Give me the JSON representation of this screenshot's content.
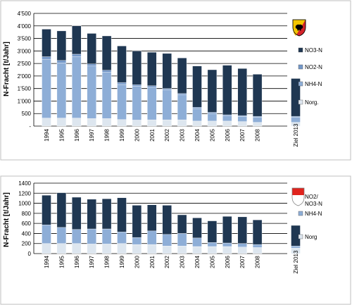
{
  "colors": {
    "NO3": "#1f3752",
    "NO2": "#7397c8",
    "NH4": "#8eaed7",
    "Norg": "#dde6ef",
    "grid": "#000000",
    "frame": "#bfbfbf"
  },
  "icons": [
    "bern-coat-of-arms-icon",
    "solothurn-coat-of-arms-icon"
  ],
  "chart_data": [
    {
      "type": "bar",
      "stacked": true,
      "ylabel": "N-Fracht [t/Jahr]",
      "ylim": [
        0,
        4500
      ],
      "yticks": [
        0,
        500,
        1000,
        1500,
        2000,
        2500,
        3000,
        3500,
        4000,
        4500
      ],
      "ytick_labels": [
        "-",
        "500",
        "1'000",
        "1'500",
        "2'000",
        "2'500",
        "3'000",
        "3'500",
        "4'000",
        "4'500"
      ],
      "grid": true,
      "legend_position": "right",
      "categories": [
        "1994",
        "1995",
        "1996",
        "1997",
        "1998",
        "1999",
        "2000",
        "2001",
        "2002",
        "2003",
        "2004",
        "2005",
        "2006",
        "2007",
        "2008",
        "Ziel 2013"
      ],
      "series": [
        {
          "name": "Norg.",
          "color_key": "Norg",
          "values": [
            320,
            320,
            320,
            300,
            300,
            260,
            240,
            250,
            250,
            250,
            200,
            200,
            200,
            180,
            150,
            150
          ]
        },
        {
          "name": "NH4-N",
          "color_key": "NH4",
          "values": [
            2350,
            2200,
            2450,
            2100,
            1850,
            1400,
            1350,
            1300,
            1200,
            1000,
            500,
            300,
            200,
            200,
            200,
            200
          ]
        },
        {
          "name": "NO2-N",
          "color_key": "NO2",
          "values": [
            100,
            100,
            100,
            80,
            80,
            80,
            60,
            60,
            50,
            50,
            50,
            50,
            50,
            40,
            40,
            40
          ]
        },
        {
          "name": "NO3-N",
          "color_key": "NO3",
          "values": [
            1100,
            1180,
            1130,
            1220,
            1370,
            1460,
            1350,
            1340,
            1400,
            1420,
            1650,
            1700,
            1980,
            1880,
            1680,
            1510
          ]
        }
      ]
    },
    {
      "type": "bar",
      "stacked": true,
      "ylabel": "N-Fracht [t/Jahr]",
      "ylim": [
        0,
        1400
      ],
      "yticks": [
        0,
        200,
        400,
        600,
        800,
        1000,
        1200,
        1400
      ],
      "ytick_labels": [
        "0",
        "200",
        "400",
        "600",
        "800",
        "1000",
        "1200",
        "1400"
      ],
      "grid": true,
      "legend_position": "right",
      "categories": [
        "1994",
        "1995",
        "1996",
        "1997",
        "1998",
        "1999",
        "2000",
        "2001",
        "2002",
        "2003",
        "2004",
        "2005",
        "2006",
        "2007",
        "2008",
        "Ziel 2013"
      ],
      "series": [
        {
          "name": "Norg",
          "color_key": "Norg",
          "values": [
            200,
            200,
            200,
            190,
            190,
            200,
            180,
            180,
            150,
            150,
            140,
            140,
            140,
            130,
            120,
            110
          ]
        },
        {
          "name": "NH4-N",
          "color_key": "NH4",
          "values": [
            370,
            320,
            280,
            300,
            300,
            230,
            140,
            270,
            230,
            250,
            170,
            80,
            70,
            70,
            60,
            40
          ]
        },
        {
          "name": "NO2/\nNO3-N",
          "color_key": "NO3",
          "values": [
            590,
            690,
            640,
            590,
            600,
            680,
            640,
            520,
            580,
            370,
            400,
            430,
            530,
            530,
            490,
            410
          ]
        }
      ]
    }
  ]
}
